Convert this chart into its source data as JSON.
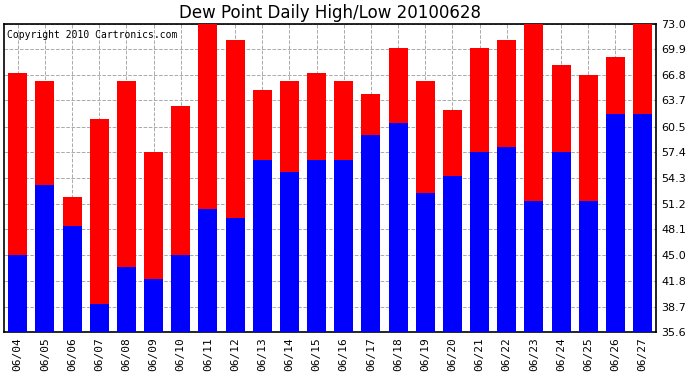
{
  "title": "Dew Point Daily High/Low 20100628",
  "copyright": "Copyright 2010 Cartronics.com",
  "categories": [
    "06/04",
    "06/05",
    "06/06",
    "06/07",
    "06/08",
    "06/09",
    "06/10",
    "06/11",
    "06/12",
    "06/13",
    "06/14",
    "06/15",
    "06/16",
    "06/17",
    "06/18",
    "06/19",
    "06/20",
    "06/21",
    "06/22",
    "06/23",
    "06/24",
    "06/25",
    "06/26",
    "06/27"
  ],
  "highs": [
    67.0,
    66.0,
    52.0,
    61.5,
    66.0,
    57.5,
    63.0,
    73.0,
    71.0,
    65.0,
    66.0,
    67.0,
    66.0,
    64.5,
    70.0,
    66.0,
    62.5,
    70.0,
    71.0,
    73.0,
    68.0,
    66.8,
    69.0,
    73.0
  ],
  "lows": [
    45.0,
    53.5,
    48.5,
    39.0,
    43.5,
    42.0,
    45.0,
    50.5,
    49.5,
    56.5,
    55.0,
    56.5,
    56.5,
    59.5,
    61.0,
    52.5,
    54.5,
    57.5,
    58.0,
    51.5,
    57.5,
    51.5,
    62.0,
    62.0
  ],
  "high_color": "#ff0000",
  "low_color": "#0000ff",
  "background_color": "#ffffff",
  "grid_color": "#aaaaaa",
  "ylim": [
    35.6,
    73.0
  ],
  "ymin": 35.6,
  "yticks": [
    35.6,
    38.7,
    41.8,
    45.0,
    48.1,
    51.2,
    54.3,
    57.4,
    60.5,
    63.7,
    66.8,
    69.9,
    73.0
  ],
  "bar_width": 0.7,
  "title_fontsize": 12,
  "tick_fontsize": 8,
  "copyright_fontsize": 7
}
